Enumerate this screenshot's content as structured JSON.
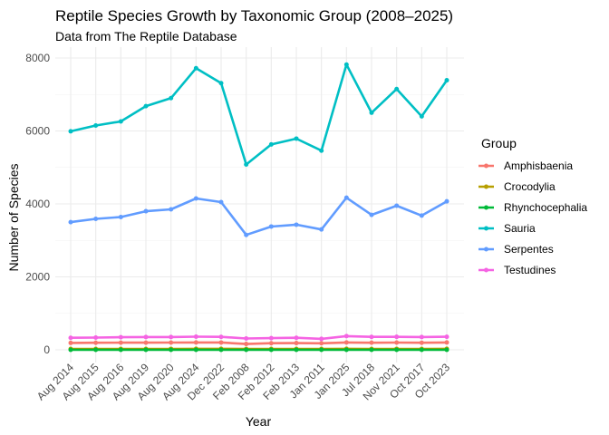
{
  "chart_data": {
    "type": "line",
    "title": "Reptile Species Growth by Taxonomic Group (2008–2025)",
    "subtitle": "Data from The Reptile Database",
    "xlabel": "Year",
    "ylabel": "Number of Species",
    "ylim": [
      0,
      8000
    ],
    "yticks": [
      0,
      2000,
      4000,
      6000,
      8000
    ],
    "grid": true,
    "legend_title": "Group",
    "legend_position": "right",
    "categories": [
      "Aug 2014",
      "Aug 2015",
      "Aug 2016",
      "Aug 2019",
      "Aug 2020",
      "Aug 2024",
      "Dec 2022",
      "Feb 2008",
      "Feb 2012",
      "Feb 2013",
      "Jan 2011",
      "Jan 2025",
      "Jul 2018",
      "Nov 2021",
      "Oct 2017",
      "Oct 2023"
    ],
    "series": [
      {
        "name": "Amphisbaenia",
        "color": "#F8766D",
        "values": [
          190,
          193,
          196,
          196,
          198,
          202,
          200,
          160,
          181,
          185,
          180,
          202,
          195,
          198,
          194,
          202
        ]
      },
      {
        "name": "Crocodylia",
        "color": "#B79F00",
        "values": [
          25,
          25,
          25,
          25,
          26,
          27,
          27,
          23,
          25,
          25,
          24,
          27,
          25,
          26,
          25,
          27
        ]
      },
      {
        "name": "Rhynchocephalia",
        "color": "#00BA38",
        "values": [
          1,
          1,
          1,
          1,
          1,
          1,
          1,
          1,
          1,
          1,
          1,
          1,
          1,
          1,
          1,
          1
        ]
      },
      {
        "name": "Sauria",
        "color": "#00BFC4",
        "values": [
          5990,
          6150,
          6260,
          6680,
          6900,
          7720,
          7310,
          5080,
          5630,
          5790,
          5460,
          7820,
          6500,
          7150,
          6400,
          7390
        ]
      },
      {
        "name": "Serpentes",
        "color": "#619CFF",
        "values": [
          3500,
          3590,
          3640,
          3800,
          3850,
          4150,
          4050,
          3150,
          3380,
          3430,
          3300,
          4170,
          3700,
          3950,
          3680,
          4070
        ]
      },
      {
        "name": "Testudines",
        "color": "#F564E3",
        "values": [
          330,
          335,
          345,
          350,
          350,
          360,
          355,
          310,
          320,
          330,
          300,
          375,
          355,
          356,
          350,
          358
        ]
      }
    ]
  }
}
